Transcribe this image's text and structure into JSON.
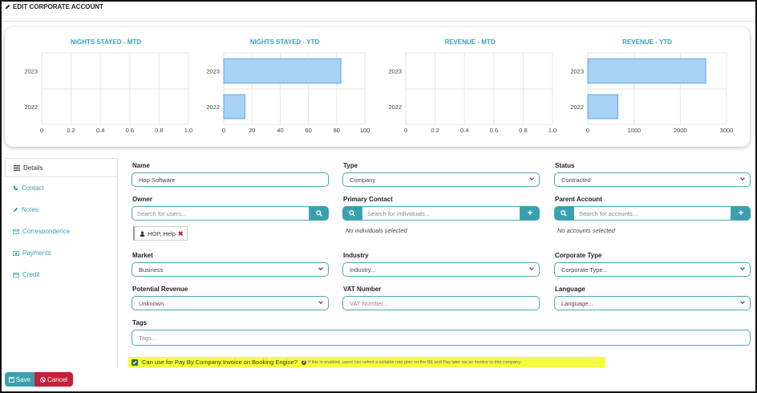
{
  "header": {
    "title": "EDIT CORPORATE ACCOUNT",
    "icon": "pencil-icon"
  },
  "charts": {
    "title_color": "#38a3b6",
    "bar_fill": "#a9d1f3",
    "bar_stroke": "#5aa6e6"
  },
  "chart_data": [
    {
      "type": "bar",
      "orientation": "horizontal",
      "title": "NIGHTS STAYED - MTD",
      "categories": [
        "2023",
        "2022"
      ],
      "values": [
        0,
        0
      ],
      "xlim": [
        0,
        1
      ],
      "xticks": [
        "0",
        "0.2",
        "0.4",
        "0.6",
        "0.8",
        "1.0"
      ],
      "grid": true
    },
    {
      "type": "bar",
      "orientation": "horizontal",
      "title": "NIGHTS STAYED - YTD",
      "categories": [
        "2023",
        "2022"
      ],
      "values": [
        83,
        15
      ],
      "xlim": [
        0,
        100
      ],
      "xticks": [
        "0",
        "20",
        "40",
        "60",
        "80",
        "100"
      ],
      "grid": true
    },
    {
      "type": "bar",
      "orientation": "horizontal",
      "title": "REVENUE - MTD",
      "categories": [
        "2023",
        "2022"
      ],
      "values": [
        0,
        0
      ],
      "xlim": [
        0,
        1
      ],
      "xticks": [
        "0",
        "0.2",
        "0.4",
        "0.6",
        "0.8",
        "1.0"
      ],
      "grid": true
    },
    {
      "type": "bar",
      "orientation": "horizontal",
      "title": "REVENUE - YTD",
      "categories": [
        "2023",
        "2022"
      ],
      "values": [
        2550,
        650
      ],
      "xlim": [
        0,
        3000
      ],
      "xticks": [
        "0",
        "1000",
        "2000",
        "3000"
      ],
      "grid": true
    }
  ],
  "tabs": [
    {
      "label": "Details",
      "icon": "list-icon",
      "active": true
    },
    {
      "label": "Contact",
      "icon": "phone-icon"
    },
    {
      "label": "Notes",
      "icon": "pencil-icon"
    },
    {
      "label": "Correspondence",
      "icon": "envelope-icon"
    },
    {
      "label": "Payments",
      "icon": "money-icon"
    },
    {
      "label": "Credit",
      "icon": "credit-card-icon"
    }
  ],
  "form": {
    "name": {
      "label": "Name",
      "value": "Hop Software"
    },
    "type": {
      "label": "Type",
      "value": "Company"
    },
    "status": {
      "label": "Status",
      "value": "Contracted"
    },
    "owner": {
      "label": "Owner",
      "placeholder": "Search for users..."
    },
    "owner_chip": {
      "text": "HOP, Help"
    },
    "primary_contact": {
      "label": "Primary Contact",
      "placeholder": "Search for individuals...",
      "empty": "No individuals selected"
    },
    "parent_account": {
      "label": "Parent Account",
      "placeholder": "Search for accounts...",
      "empty": "No accounts selected"
    },
    "market": {
      "label": "Market",
      "value": "Business"
    },
    "industry": {
      "label": "Industry",
      "value": "Industry..."
    },
    "corporate_type": {
      "label": "Corporate Type",
      "value": "Corporate Type..."
    },
    "potential_revenue": {
      "label": "Potential Revenue",
      "value": "Unknown"
    },
    "vat": {
      "label": "VAT Number",
      "placeholder": "VAT Number..."
    },
    "language": {
      "label": "Language",
      "value": "Language..."
    },
    "tags": {
      "label": "Tags",
      "placeholder": "Tags..."
    },
    "pay_by_invoice": {
      "checked": true,
      "label": "Can use for Pay By Company Invoice on Booking Engine?",
      "help": "If this is enabled, users can select a suitable rate plan on the BE and Pay later via an invoice to this company."
    }
  },
  "buttons": {
    "save": "Save",
    "cancel": "Cancel"
  },
  "colors": {
    "accent": "#3aa0ae",
    "danger": "#c51f3a",
    "highlight": "#f5ff3c"
  }
}
